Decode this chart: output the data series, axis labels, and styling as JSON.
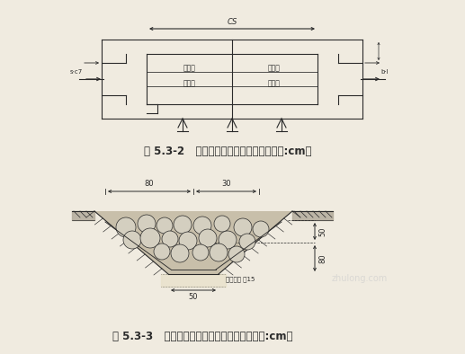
{
  "fig_width": 5.17,
  "fig_height": 3.94,
  "dpi": 100,
  "bg_color": "#f0ebe0",
  "line_color": "#2a2a2a",
  "caption1": "图 5.3-2   干砖石沉砂池平面设计图（单位:cm）",
  "caption2": "图 5.3-3   干砖石排水沟典型设计断面图（单位:cm）",
  "watermark": "zhulong.com"
}
